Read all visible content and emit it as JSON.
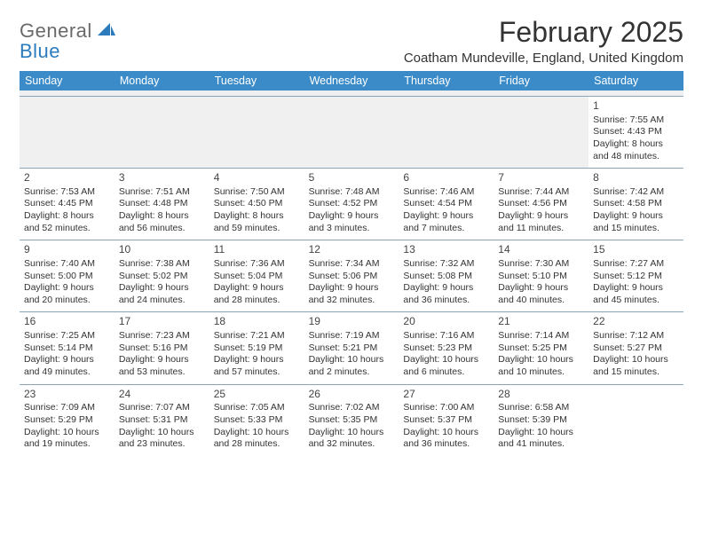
{
  "logo": {
    "word1": "General",
    "word2": "Blue"
  },
  "title": "February 2025",
  "location": "Coatham Mundeville, England, United Kingdom",
  "colors": {
    "header_bg": "#3b8bc9",
    "header_text": "#ffffff",
    "row_border": "#8aa4b8",
    "empty_bg": "#f0f0f0",
    "text": "#333333",
    "logo_gray": "#6a6a6a",
    "logo_blue": "#2b7bbd"
  },
  "weekdays": [
    "Sunday",
    "Monday",
    "Tuesday",
    "Wednesday",
    "Thursday",
    "Friday",
    "Saturday"
  ],
  "weeks": [
    [
      {
        "empty": true
      },
      {
        "empty": true
      },
      {
        "empty": true
      },
      {
        "empty": true
      },
      {
        "empty": true
      },
      {
        "empty": true
      },
      {
        "day": "1",
        "sunrise": "Sunrise: 7:55 AM",
        "sunset": "Sunset: 4:43 PM",
        "dl1": "Daylight: 8 hours",
        "dl2": "and 48 minutes."
      }
    ],
    [
      {
        "day": "2",
        "sunrise": "Sunrise: 7:53 AM",
        "sunset": "Sunset: 4:45 PM",
        "dl1": "Daylight: 8 hours",
        "dl2": "and 52 minutes."
      },
      {
        "day": "3",
        "sunrise": "Sunrise: 7:51 AM",
        "sunset": "Sunset: 4:48 PM",
        "dl1": "Daylight: 8 hours",
        "dl2": "and 56 minutes."
      },
      {
        "day": "4",
        "sunrise": "Sunrise: 7:50 AM",
        "sunset": "Sunset: 4:50 PM",
        "dl1": "Daylight: 8 hours",
        "dl2": "and 59 minutes."
      },
      {
        "day": "5",
        "sunrise": "Sunrise: 7:48 AM",
        "sunset": "Sunset: 4:52 PM",
        "dl1": "Daylight: 9 hours",
        "dl2": "and 3 minutes."
      },
      {
        "day": "6",
        "sunrise": "Sunrise: 7:46 AM",
        "sunset": "Sunset: 4:54 PM",
        "dl1": "Daylight: 9 hours",
        "dl2": "and 7 minutes."
      },
      {
        "day": "7",
        "sunrise": "Sunrise: 7:44 AM",
        "sunset": "Sunset: 4:56 PM",
        "dl1": "Daylight: 9 hours",
        "dl2": "and 11 minutes."
      },
      {
        "day": "8",
        "sunrise": "Sunrise: 7:42 AM",
        "sunset": "Sunset: 4:58 PM",
        "dl1": "Daylight: 9 hours",
        "dl2": "and 15 minutes."
      }
    ],
    [
      {
        "day": "9",
        "sunrise": "Sunrise: 7:40 AM",
        "sunset": "Sunset: 5:00 PM",
        "dl1": "Daylight: 9 hours",
        "dl2": "and 20 minutes."
      },
      {
        "day": "10",
        "sunrise": "Sunrise: 7:38 AM",
        "sunset": "Sunset: 5:02 PM",
        "dl1": "Daylight: 9 hours",
        "dl2": "and 24 minutes."
      },
      {
        "day": "11",
        "sunrise": "Sunrise: 7:36 AM",
        "sunset": "Sunset: 5:04 PM",
        "dl1": "Daylight: 9 hours",
        "dl2": "and 28 minutes."
      },
      {
        "day": "12",
        "sunrise": "Sunrise: 7:34 AM",
        "sunset": "Sunset: 5:06 PM",
        "dl1": "Daylight: 9 hours",
        "dl2": "and 32 minutes."
      },
      {
        "day": "13",
        "sunrise": "Sunrise: 7:32 AM",
        "sunset": "Sunset: 5:08 PM",
        "dl1": "Daylight: 9 hours",
        "dl2": "and 36 minutes."
      },
      {
        "day": "14",
        "sunrise": "Sunrise: 7:30 AM",
        "sunset": "Sunset: 5:10 PM",
        "dl1": "Daylight: 9 hours",
        "dl2": "and 40 minutes."
      },
      {
        "day": "15",
        "sunrise": "Sunrise: 7:27 AM",
        "sunset": "Sunset: 5:12 PM",
        "dl1": "Daylight: 9 hours",
        "dl2": "and 45 minutes."
      }
    ],
    [
      {
        "day": "16",
        "sunrise": "Sunrise: 7:25 AM",
        "sunset": "Sunset: 5:14 PM",
        "dl1": "Daylight: 9 hours",
        "dl2": "and 49 minutes."
      },
      {
        "day": "17",
        "sunrise": "Sunrise: 7:23 AM",
        "sunset": "Sunset: 5:16 PM",
        "dl1": "Daylight: 9 hours",
        "dl2": "and 53 minutes."
      },
      {
        "day": "18",
        "sunrise": "Sunrise: 7:21 AM",
        "sunset": "Sunset: 5:19 PM",
        "dl1": "Daylight: 9 hours",
        "dl2": "and 57 minutes."
      },
      {
        "day": "19",
        "sunrise": "Sunrise: 7:19 AM",
        "sunset": "Sunset: 5:21 PM",
        "dl1": "Daylight: 10 hours",
        "dl2": "and 2 minutes."
      },
      {
        "day": "20",
        "sunrise": "Sunrise: 7:16 AM",
        "sunset": "Sunset: 5:23 PM",
        "dl1": "Daylight: 10 hours",
        "dl2": "and 6 minutes."
      },
      {
        "day": "21",
        "sunrise": "Sunrise: 7:14 AM",
        "sunset": "Sunset: 5:25 PM",
        "dl1": "Daylight: 10 hours",
        "dl2": "and 10 minutes."
      },
      {
        "day": "22",
        "sunrise": "Sunrise: 7:12 AM",
        "sunset": "Sunset: 5:27 PM",
        "dl1": "Daylight: 10 hours",
        "dl2": "and 15 minutes."
      }
    ],
    [
      {
        "day": "23",
        "sunrise": "Sunrise: 7:09 AM",
        "sunset": "Sunset: 5:29 PM",
        "dl1": "Daylight: 10 hours",
        "dl2": "and 19 minutes."
      },
      {
        "day": "24",
        "sunrise": "Sunrise: 7:07 AM",
        "sunset": "Sunset: 5:31 PM",
        "dl1": "Daylight: 10 hours",
        "dl2": "and 23 minutes."
      },
      {
        "day": "25",
        "sunrise": "Sunrise: 7:05 AM",
        "sunset": "Sunset: 5:33 PM",
        "dl1": "Daylight: 10 hours",
        "dl2": "and 28 minutes."
      },
      {
        "day": "26",
        "sunrise": "Sunrise: 7:02 AM",
        "sunset": "Sunset: 5:35 PM",
        "dl1": "Daylight: 10 hours",
        "dl2": "and 32 minutes."
      },
      {
        "day": "27",
        "sunrise": "Sunrise: 7:00 AM",
        "sunset": "Sunset: 5:37 PM",
        "dl1": "Daylight: 10 hours",
        "dl2": "and 36 minutes."
      },
      {
        "day": "28",
        "sunrise": "Sunrise: 6:58 AM",
        "sunset": "Sunset: 5:39 PM",
        "dl1": "Daylight: 10 hours",
        "dl2": "and 41 minutes."
      },
      {
        "empty": true,
        "white": true
      }
    ]
  ]
}
